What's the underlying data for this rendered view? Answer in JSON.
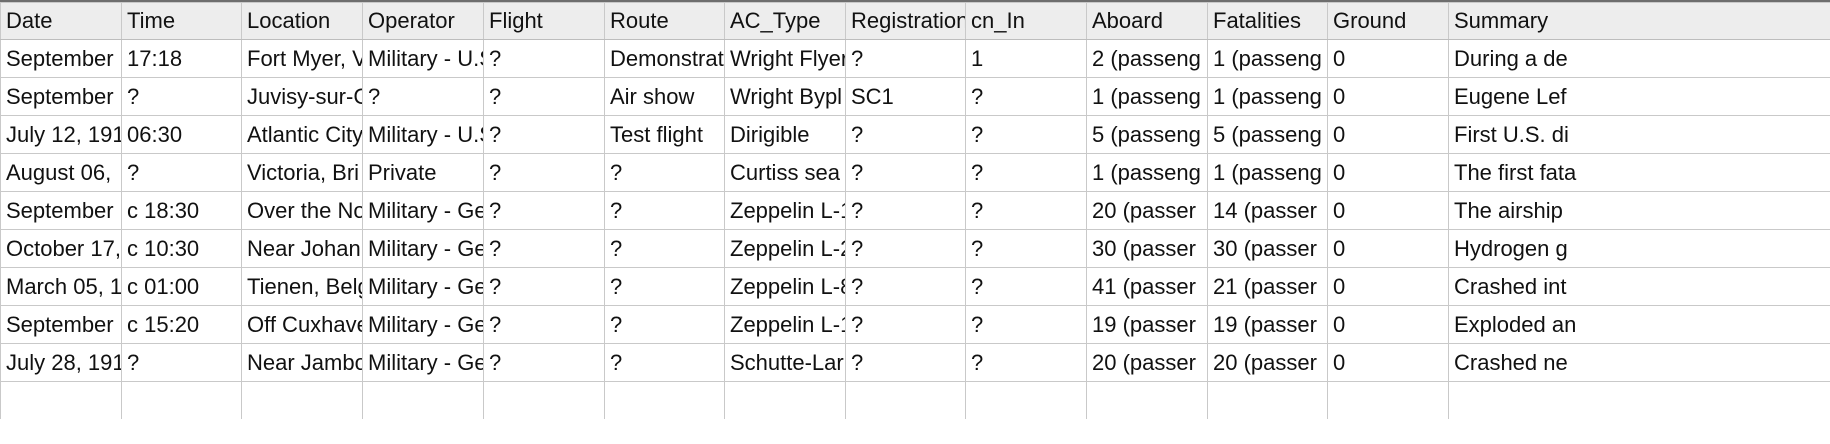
{
  "table": {
    "columns": [
      "Date",
      "Time",
      "Location",
      "Operator",
      "Flight",
      "Route",
      "AC_Type",
      "Registration",
      "cn_In",
      "Aboard",
      "Fatalities",
      "Ground",
      "Summary"
    ],
    "rows": [
      [
        "September",
        "17:18",
        "Fort Myer, V",
        "Military - U.S",
        "?",
        "Demonstrat",
        "Wright Flyer",
        "?",
        "1",
        "2   (passeng",
        "1   (passeng",
        "0",
        "During a de"
      ],
      [
        "September",
        "?",
        "Juvisy-sur-C",
        "?",
        "?",
        "Air show",
        "Wright Bypl",
        "SC1",
        "?",
        "1   (passeng",
        "1   (passeng",
        "0",
        "Eugene Lef"
      ],
      [
        "July 12, 191",
        "06:30",
        "Atlantic City",
        "Military - U.S",
        "?",
        "Test flight",
        "Dirigible",
        "?",
        "?",
        "5   (passeng",
        "5   (passeng",
        "0",
        "First U.S. di"
      ],
      [
        "August 06,",
        "?",
        "Victoria, Bri",
        "Private",
        "?",
        "?",
        "Curtiss sea",
        "?",
        "?",
        "1   (passeng",
        "1   (passeng",
        "0",
        "The first fata"
      ],
      [
        "September",
        "c 18:30",
        "Over the No",
        "Military - Ge",
        "?",
        "?",
        "Zeppelin L-1",
        "?",
        "?",
        "20   (passer",
        "14   (passer",
        "0",
        "The airship"
      ],
      [
        "October 17,",
        "c 10:30",
        "Near Johan",
        "Military - Ge",
        "?",
        "?",
        "Zeppelin L-2",
        "?",
        "?",
        "30   (passer",
        "30   (passer",
        "0",
        "Hydrogen g"
      ],
      [
        "March 05, 1",
        "c 01:00",
        "Tienen, Belg",
        "Military - Ge",
        "?",
        "?",
        "Zeppelin L-8",
        "?",
        "?",
        "41   (passer",
        "21   (passer",
        "0",
        "Crashed int"
      ],
      [
        "September",
        "c 15:20",
        "Off Cuxhave",
        "Military - Ge",
        "?",
        "?",
        "Zeppelin L-1",
        "?",
        "?",
        "19   (passer",
        "19   (passer",
        "0",
        "Exploded an"
      ],
      [
        "July 28, 191",
        "?",
        "Near Jambo",
        "Military - Ge",
        "?",
        "?",
        "Schutte-Lar",
        "?",
        "?",
        "20   (passer",
        "20   (passer",
        "0",
        "Crashed ne"
      ],
      [
        "",
        "",
        "",
        "",
        "",
        "",
        "",
        "",
        "",
        "",
        "",
        "",
        ""
      ]
    ]
  }
}
